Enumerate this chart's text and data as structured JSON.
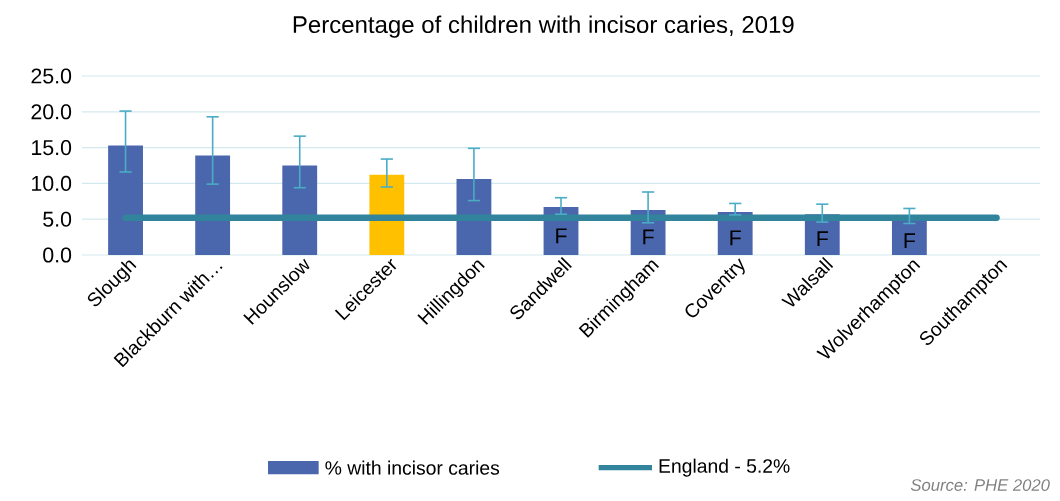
{
  "chart_data": {
    "type": "bar",
    "title": "Percentage of children with incisor caries, 2019",
    "categories": [
      "Slough",
      "Blackburn with…",
      "Hounslow",
      "Leicester",
      "Hillingdon",
      "Sandwell",
      "Birmingham",
      "Coventry",
      "Walsall",
      "Wolverhampton",
      "Southampton"
    ],
    "series": [
      {
        "name": "% with incisor caries",
        "color": "#4a66ac",
        "colors": [
          "#4a66ac",
          "#4a66ac",
          "#4a66ac",
          "#ffc000",
          "#4a66ac",
          "#4a66ac",
          "#4a66ac",
          "#4a66ac",
          "#4a66ac",
          "#4a66ac",
          "#4a66ac"
        ],
        "values": [
          15.3,
          13.9,
          12.5,
          11.2,
          10.6,
          6.7,
          6.3,
          6.0,
          5.7,
          5.0,
          null
        ],
        "value_labels": [
          null,
          null,
          null,
          null,
          null,
          "F",
          "F",
          "F",
          "F",
          "F",
          null
        ],
        "errors": [
          [
            11.6,
            20.1
          ],
          [
            9.9,
            19.3
          ],
          [
            9.4,
            16.6
          ],
          [
            9.5,
            13.4
          ],
          [
            7.6,
            14.9
          ],
          [
            5.7,
            8.0
          ],
          [
            4.5,
            8.8
          ],
          [
            5.6,
            7.2
          ],
          [
            4.6,
            7.1
          ],
          [
            4.4,
            6.5
          ],
          null
        ]
      }
    ],
    "ylim": [
      0,
      25
    ],
    "yticks": [
      {
        "value": 0,
        "label": "0.0"
      },
      {
        "value": 5,
        "label": "5.0"
      },
      {
        "value": 10,
        "label": "10.0"
      },
      {
        "value": 15,
        "label": "15.0"
      },
      {
        "value": 20,
        "label": "20.0"
      },
      {
        "value": 25,
        "label": "25.0"
      }
    ],
    "ref_lines": [
      {
        "axis": "y",
        "value": 5.2,
        "label": "England - 5.2%",
        "color": "#31849b"
      }
    ],
    "annotations": [
      "Source: PHE 2020"
    ],
    "grid": "y",
    "legend": "bottom"
  }
}
